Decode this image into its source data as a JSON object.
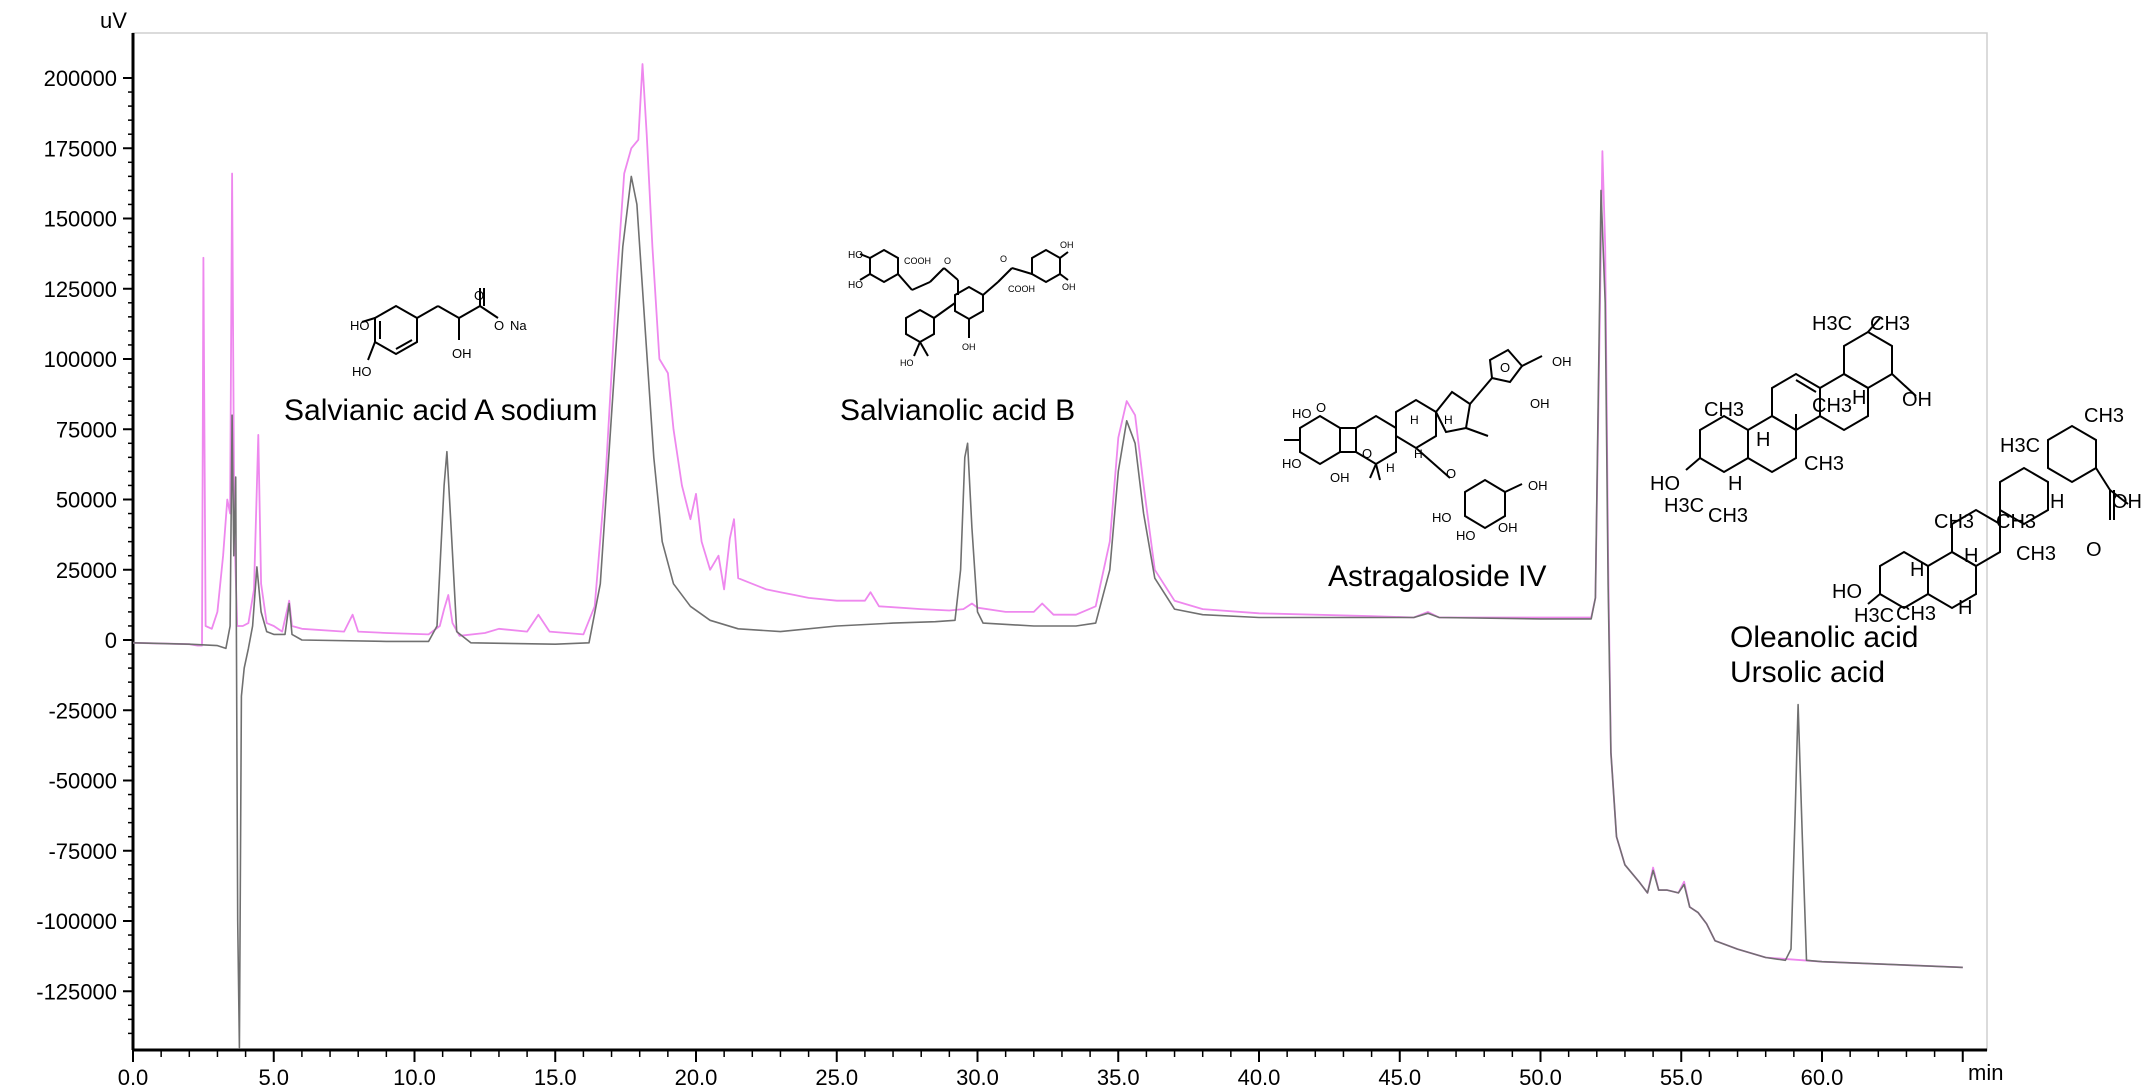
{
  "chart_data": {
    "type": "line",
    "x_unit": "min",
    "y_unit": "uV",
    "xlim": [
      0,
      65
    ],
    "ylim": [
      -147000,
      212000
    ],
    "x_ticks": [
      "0.0",
      "5.0",
      "10.0",
      "15.0",
      "20.0",
      "25.0",
      "30.0",
      "35.0",
      "40.0",
      "45.0",
      "50.0",
      "55.0",
      "60.0"
    ],
    "y_ticks": [
      "200000",
      "175000",
      "150000",
      "125000",
      "100000",
      "75000",
      "50000",
      "25000",
      "0",
      "-25000",
      "-50000",
      "-75000",
      "-100000",
      "-125000"
    ],
    "y_tick_values": [
      200000,
      175000,
      150000,
      125000,
      100000,
      75000,
      50000,
      25000,
      0,
      -25000,
      -50000,
      -75000,
      -100000,
      -125000
    ],
    "x_tick_values": [
      0,
      5,
      10,
      15,
      20,
      25,
      30,
      35,
      40,
      45,
      50,
      55,
      60
    ],
    "grid": false,
    "series": [
      {
        "color": "#ee88ee",
        "points": [
          [
            0,
            -1000
          ],
          [
            2.0,
            -1500
          ],
          [
            2.3,
            -2000
          ],
          [
            2.45,
            -2000
          ],
          [
            2.5,
            136000
          ],
          [
            2.58,
            5000
          ],
          [
            2.8,
            4000
          ],
          [
            3.0,
            10000
          ],
          [
            3.2,
            30000
          ],
          [
            3.35,
            50000
          ],
          [
            3.45,
            45000
          ],
          [
            3.52,
            166000
          ],
          [
            3.6,
            40000
          ],
          [
            3.7,
            5000
          ],
          [
            3.9,
            5000
          ],
          [
            4.1,
            6000
          ],
          [
            4.3,
            18000
          ],
          [
            4.45,
            73000
          ],
          [
            4.55,
            20000
          ],
          [
            4.75,
            6000
          ],
          [
            5.0,
            5000
          ],
          [
            5.3,
            3000
          ],
          [
            5.55,
            14000
          ],
          [
            5.65,
            5000
          ],
          [
            6.0,
            4000
          ],
          [
            7.5,
            3000
          ],
          [
            7.8,
            9000
          ],
          [
            8.0,
            3000
          ],
          [
            9.0,
            2500
          ],
          [
            10.5,
            2000
          ],
          [
            10.9,
            5000
          ],
          [
            11.05,
            11000
          ],
          [
            11.2,
            16000
          ],
          [
            11.35,
            6000
          ],
          [
            11.6,
            1500
          ],
          [
            12.5,
            2500
          ],
          [
            13.0,
            4000
          ],
          [
            14.0,
            3000
          ],
          [
            14.4,
            9000
          ],
          [
            14.8,
            3000
          ],
          [
            16.0,
            2000
          ],
          [
            16.4,
            12000
          ],
          [
            16.8,
            60000
          ],
          [
            17.2,
            130000
          ],
          [
            17.45,
            166000
          ],
          [
            17.7,
            175000
          ],
          [
            17.95,
            178000
          ],
          [
            18.1,
            205000
          ],
          [
            18.25,
            180000
          ],
          [
            18.45,
            140000
          ],
          [
            18.7,
            100000
          ],
          [
            19.0,
            95000
          ],
          [
            19.2,
            75000
          ],
          [
            19.5,
            55000
          ],
          [
            19.8,
            43000
          ],
          [
            20.0,
            52000
          ],
          [
            20.2,
            35000
          ],
          [
            20.5,
            25000
          ],
          [
            20.8,
            30000
          ],
          [
            21.0,
            18000
          ],
          [
            21.2,
            36000
          ],
          [
            21.35,
            43000
          ],
          [
            21.5,
            22000
          ],
          [
            22.0,
            20000
          ],
          [
            22.5,
            18000
          ],
          [
            23.0,
            17000
          ],
          [
            23.5,
            16000
          ],
          [
            24.0,
            15000
          ],
          [
            25.0,
            14000
          ],
          [
            26.0,
            14000
          ],
          [
            26.2,
            17000
          ],
          [
            26.5,
            12000
          ],
          [
            28.0,
            11000
          ],
          [
            29.0,
            10500
          ],
          [
            29.5,
            11000
          ],
          [
            29.8,
            13000
          ],
          [
            30.0,
            11500
          ],
          [
            31.0,
            10000
          ],
          [
            32.0,
            10000
          ],
          [
            32.3,
            13000
          ],
          [
            32.7,
            9000
          ],
          [
            33.5,
            9000
          ],
          [
            34.2,
            12000
          ],
          [
            34.7,
            35000
          ],
          [
            35.0,
            72000
          ],
          [
            35.3,
            85000
          ],
          [
            35.6,
            80000
          ],
          [
            35.9,
            55000
          ],
          [
            36.3,
            25000
          ],
          [
            37.0,
            14000
          ],
          [
            38.0,
            11000
          ],
          [
            40.0,
            9500
          ],
          [
            44.0,
            8500
          ],
          [
            45.5,
            8000
          ],
          [
            46.0,
            10000
          ],
          [
            46.4,
            8000
          ],
          [
            50.0,
            8000
          ],
          [
            51.8,
            8000
          ],
          [
            51.95,
            15000
          ],
          [
            52.1,
            110000
          ],
          [
            52.2,
            174000
          ],
          [
            52.3,
            140000
          ],
          [
            52.4,
            30000
          ],
          [
            52.5,
            -40000
          ],
          [
            52.7,
            -70000
          ],
          [
            53.0,
            -80000
          ],
          [
            53.5,
            -86000
          ],
          [
            53.8,
            -90000
          ],
          [
            54.0,
            -81000
          ],
          [
            54.2,
            -89000
          ],
          [
            54.5,
            -89000
          ],
          [
            54.9,
            -90000
          ],
          [
            55.1,
            -86000
          ],
          [
            55.3,
            -95000
          ],
          [
            55.6,
            -97000
          ],
          [
            55.9,
            -101000
          ],
          [
            56.2,
            -107000
          ],
          [
            57.0,
            -110000
          ],
          [
            58.0,
            -113000
          ],
          [
            60.0,
            -114500
          ],
          [
            65.0,
            -116500
          ]
        ]
      },
      {
        "color": "#707070",
        "points": [
          [
            0,
            -1000
          ],
          [
            2.0,
            -1500
          ],
          [
            3.0,
            -2000
          ],
          [
            3.3,
            -3000
          ],
          [
            3.45,
            5000
          ],
          [
            3.52,
            80000
          ],
          [
            3.58,
            30000
          ],
          [
            3.65,
            58000
          ],
          [
            3.72,
            -100000
          ],
          [
            3.78,
            -145000
          ],
          [
            3.85,
            -20000
          ],
          [
            3.95,
            -10000
          ],
          [
            4.1,
            -3000
          ],
          [
            4.25,
            5000
          ],
          [
            4.4,
            26000
          ],
          [
            4.55,
            10000
          ],
          [
            4.75,
            3000
          ],
          [
            5.0,
            2000
          ],
          [
            5.4,
            2000
          ],
          [
            5.55,
            13000
          ],
          [
            5.65,
            2000
          ],
          [
            6.0,
            0
          ],
          [
            9.0,
            -500
          ],
          [
            10.5,
            -500
          ],
          [
            10.8,
            5000
          ],
          [
            11.05,
            55000
          ],
          [
            11.15,
            67000
          ],
          [
            11.3,
            40000
          ],
          [
            11.5,
            3000
          ],
          [
            12.0,
            -1000
          ],
          [
            15.0,
            -1500
          ],
          [
            16.2,
            -1000
          ],
          [
            16.6,
            20000
          ],
          [
            17.0,
            80000
          ],
          [
            17.4,
            140000
          ],
          [
            17.7,
            165000
          ],
          [
            17.9,
            155000
          ],
          [
            18.2,
            110000
          ],
          [
            18.5,
            65000
          ],
          [
            18.8,
            35000
          ],
          [
            19.2,
            20000
          ],
          [
            19.8,
            12000
          ],
          [
            20.5,
            7000
          ],
          [
            21.5,
            4000
          ],
          [
            23.0,
            3000
          ],
          [
            25.0,
            5000
          ],
          [
            27.0,
            6000
          ],
          [
            28.5,
            6500
          ],
          [
            29.2,
            7000
          ],
          [
            29.4,
            25000
          ],
          [
            29.55,
            65000
          ],
          [
            29.65,
            70000
          ],
          [
            29.8,
            40000
          ],
          [
            30.0,
            10000
          ],
          [
            30.2,
            6000
          ],
          [
            32.0,
            5000
          ],
          [
            33.5,
            5000
          ],
          [
            34.2,
            6000
          ],
          [
            34.7,
            25000
          ],
          [
            35.0,
            60000
          ],
          [
            35.3,
            78000
          ],
          [
            35.6,
            70000
          ],
          [
            35.9,
            45000
          ],
          [
            36.3,
            22000
          ],
          [
            37.0,
            11000
          ],
          [
            38.0,
            9000
          ],
          [
            40.0,
            8000
          ],
          [
            44.0,
            8000
          ],
          [
            45.5,
            8000
          ],
          [
            46.0,
            9500
          ],
          [
            46.4,
            8000
          ],
          [
            50.0,
            7500
          ],
          [
            51.8,
            7500
          ],
          [
            51.95,
            15000
          ],
          [
            52.1,
            120000
          ],
          [
            52.15,
            160000
          ],
          [
            52.3,
            120000
          ],
          [
            52.4,
            20000
          ],
          [
            52.5,
            -40000
          ],
          [
            52.7,
            -70000
          ],
          [
            53.0,
            -80000
          ],
          [
            53.5,
            -86000
          ],
          [
            53.8,
            -90000
          ],
          [
            54.0,
            -82000
          ],
          [
            54.2,
            -89000
          ],
          [
            54.5,
            -89000
          ],
          [
            54.9,
            -90000
          ],
          [
            55.1,
            -87000
          ],
          [
            55.3,
            -95000
          ],
          [
            55.6,
            -97000
          ],
          [
            55.9,
            -101000
          ],
          [
            56.2,
            -107000
          ],
          [
            57.0,
            -110000
          ],
          [
            58.0,
            -113000
          ],
          [
            58.7,
            -114000
          ],
          [
            58.9,
            -110000
          ],
          [
            59.05,
            -60000
          ],
          [
            59.15,
            -23000
          ],
          [
            59.3,
            -70000
          ],
          [
            59.45,
            -114000
          ],
          [
            60.0,
            -114500
          ],
          [
            65.0,
            -116500
          ]
        ]
      }
    ],
    "annotations": [
      {
        "text": "Salvianic acid A sodium"
      },
      {
        "text": "Salvianolic acid B"
      },
      {
        "text": "Astragaloside IV"
      },
      {
        "text": "Oleanolic acid"
      },
      {
        "text": "Ursolic acid"
      }
    ],
    "structure_labels": {
      "salvianic": [
        "HO",
        "HO",
        "O",
        "O",
        "Na",
        "OH"
      ],
      "salvianolic": [
        "HO",
        "HO",
        "COOH",
        "O",
        "O",
        "COOH",
        "OH",
        "OH",
        "HO",
        "OH"
      ],
      "astragaloside": [
        "HO",
        "HO",
        "OH",
        "O",
        "O",
        "H",
        "H",
        "H",
        "H",
        "OH",
        "OH",
        "O",
        "HO",
        "HO",
        "OH",
        "OH",
        "O"
      ],
      "oleanolic": [
        "H3C",
        "CH3",
        "CH3",
        "H",
        "CH3",
        "H",
        "CH3",
        "HO",
        "H",
        "H3C",
        "CH3",
        "OH"
      ],
      "ursolic": [
        "CH3",
        "H3C",
        "H",
        "OH",
        "CH3",
        "CH3",
        "H",
        "O",
        "CH3",
        "HO",
        "H",
        "H3C",
        "CH3",
        "H"
      ]
    }
  }
}
